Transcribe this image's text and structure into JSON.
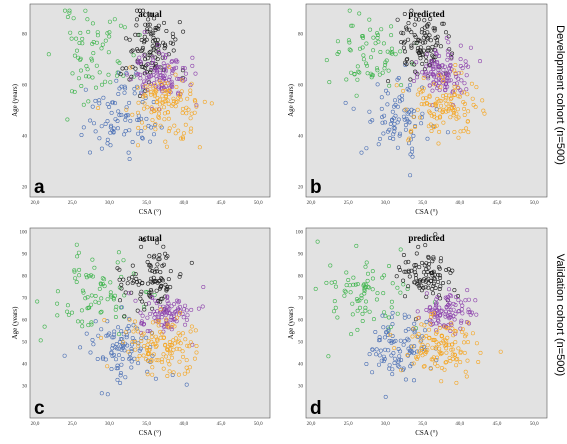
{
  "figure": {
    "cohort_labels": [
      "Development cohort (n=500)",
      "Validation cohort (n=500)"
    ]
  },
  "colors": {
    "plot_background": "#e2e2e2",
    "cluster_green": "#3cb44b",
    "cluster_blue": "#4a6fb5",
    "cluster_black": "#1e1e1e",
    "cluster_purple": "#8e44ad",
    "cluster_orange": "#f5a623"
  },
  "chart_data": [
    {
      "type": "scatter",
      "panel_letter": "a",
      "title": "actual",
      "xlabel": "CSA (°)",
      "ylabel": "Age (years)",
      "xlim": [
        20,
        50
      ],
      "ylim": [
        20,
        90
      ],
      "x_ticks": [
        "20,0",
        "25,0",
        "30,0",
        "35,0",
        "40,0",
        "45,0",
        "50,0"
      ],
      "y_ticks": [
        "20",
        "40",
        "60",
        "80"
      ],
      "grid": false,
      "legend": "none",
      "cohort": "Development cohort (n=500)",
      "series": [
        {
          "color": "#3cb44b",
          "seed": 11,
          "n": 70,
          "x_center": 28,
          "x_sd": 2.6,
          "y_center": 72,
          "y_sd": 9
        },
        {
          "color": "#4a6fb5",
          "seed": 12,
          "n": 85,
          "x_center": 31.5,
          "x_sd": 2.4,
          "y_center": 48,
          "y_sd": 7
        },
        {
          "color": "#1e1e1e",
          "seed": 13,
          "n": 110,
          "x_center": 35,
          "x_sd": 1.9,
          "y_center": 75,
          "y_sd": 7
        },
        {
          "color": "#8e44ad",
          "seed": 14,
          "n": 115,
          "x_center": 37,
          "x_sd": 1.9,
          "y_center": 64,
          "y_sd": 5
        },
        {
          "color": "#f5a623",
          "seed": 15,
          "n": 120,
          "x_center": 37.5,
          "x_sd": 2.6,
          "y_center": 52,
          "y_sd": 7
        }
      ]
    },
    {
      "type": "scatter",
      "panel_letter": "b",
      "title": "predicted",
      "xlabel": "CSA (°)",
      "ylabel": "Age (years)",
      "xlim": [
        20,
        50
      ],
      "ylim": [
        20,
        90
      ],
      "x_ticks": [
        "20,0",
        "25,0",
        "30,0",
        "35,0",
        "40,0",
        "45,0",
        "50,0"
      ],
      "y_ticks": [
        "20",
        "40",
        "60",
        "80"
      ],
      "grid": false,
      "legend": "none",
      "cohort": "Development cohort (n=500)",
      "series": [
        {
          "color": "#3cb44b",
          "seed": 21,
          "n": 72,
          "x_center": 27.8,
          "x_sd": 2.5,
          "y_center": 72,
          "y_sd": 8.5
        },
        {
          "color": "#4a6fb5",
          "seed": 22,
          "n": 88,
          "x_center": 31.5,
          "x_sd": 2.2,
          "y_center": 48,
          "y_sd": 7
        },
        {
          "color": "#1e1e1e",
          "seed": 23,
          "n": 105,
          "x_center": 35,
          "x_sd": 1.8,
          "y_center": 76,
          "y_sd": 6.5
        },
        {
          "color": "#8e44ad",
          "seed": 24,
          "n": 115,
          "x_center": 37.5,
          "x_sd": 1.8,
          "y_center": 64,
          "y_sd": 4.5
        },
        {
          "color": "#f5a623",
          "seed": 25,
          "n": 120,
          "x_center": 37.8,
          "x_sd": 2.4,
          "y_center": 51,
          "y_sd": 6.5
        }
      ]
    },
    {
      "type": "scatter",
      "panel_letter": "c",
      "title": "actual",
      "xlabel": "CSA (°)",
      "ylabel": "Age (years)",
      "xlim": [
        20,
        50
      ],
      "ylim": [
        20,
        100
      ],
      "x_ticks": [
        "20,0",
        "25,0",
        "30,0",
        "35,0",
        "40,0",
        "45,0",
        "50,0"
      ],
      "y_ticks": [
        "30",
        "40",
        "50",
        "60",
        "70",
        "80",
        "90",
        "100"
      ],
      "grid": false,
      "legend": "none",
      "cohort": "Validation cohort (n=500)",
      "series": [
        {
          "color": "#3cb44b",
          "seed": 31,
          "n": 80,
          "x_center": 28,
          "x_sd": 2.8,
          "y_center": 72,
          "y_sd": 9
        },
        {
          "color": "#4a6fb5",
          "seed": 32,
          "n": 95,
          "x_center": 31.5,
          "x_sd": 2.4,
          "y_center": 48,
          "y_sd": 7.5
        },
        {
          "color": "#1e1e1e",
          "seed": 33,
          "n": 100,
          "x_center": 35.5,
          "x_sd": 2.0,
          "y_center": 78,
          "y_sd": 7
        },
        {
          "color": "#8e44ad",
          "seed": 34,
          "n": 100,
          "x_center": 37.5,
          "x_sd": 2.0,
          "y_center": 63,
          "y_sd": 5
        },
        {
          "color": "#f5a623",
          "seed": 35,
          "n": 125,
          "x_center": 37,
          "x_sd": 2.6,
          "y_center": 48,
          "y_sd": 6.5
        }
      ]
    },
    {
      "type": "scatter",
      "panel_letter": "d",
      "title": "predicted",
      "xlabel": "CSA (°)",
      "ylabel": "Age (years)",
      "xlim": [
        20,
        50
      ],
      "ylim": [
        20,
        100
      ],
      "x_ticks": [
        "20,0",
        "25,0",
        "30,0",
        "35,0",
        "40,0",
        "45,0",
        "50,0"
      ],
      "y_ticks": [
        "30",
        "40",
        "50",
        "60",
        "70",
        "80",
        "90",
        "100"
      ],
      "grid": false,
      "legend": "none",
      "cohort": "Validation cohort (n=500)",
      "series": [
        {
          "color": "#3cb44b",
          "seed": 41,
          "n": 82,
          "x_center": 27.8,
          "x_sd": 2.7,
          "y_center": 72,
          "y_sd": 8.5
        },
        {
          "color": "#4a6fb5",
          "seed": 42,
          "n": 95,
          "x_center": 31.5,
          "x_sd": 2.2,
          "y_center": 48,
          "y_sd": 7
        },
        {
          "color": "#1e1e1e",
          "seed": 43,
          "n": 98,
          "x_center": 35.5,
          "x_sd": 1.9,
          "y_center": 79,
          "y_sd": 6.5
        },
        {
          "color": "#8e44ad",
          "seed": 44,
          "n": 100,
          "x_center": 38,
          "x_sd": 1.9,
          "y_center": 63,
          "y_sd": 4.5
        },
        {
          "color": "#f5a623",
          "seed": 45,
          "n": 125,
          "x_center": 37.5,
          "x_sd": 2.4,
          "y_center": 48,
          "y_sd": 6
        }
      ]
    }
  ]
}
